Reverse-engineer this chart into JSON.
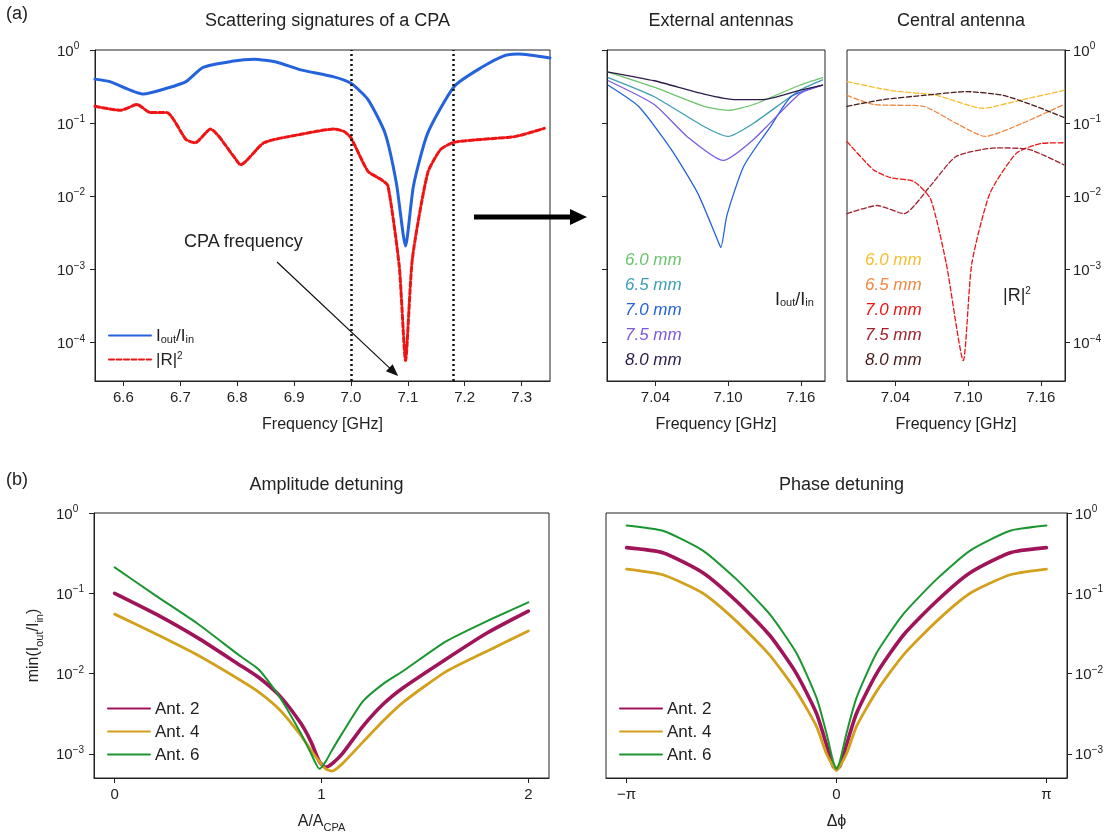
{
  "chart_data": [
    {
      "type": "line",
      "title": "Scattering signatures of a CPA",
      "xlabel": "Frequency [GHz]",
      "xlim": [
        6.55,
        7.35
      ],
      "xticks": [
        6.6,
        6.7,
        6.8,
        6.9,
        {
          "value": 7,
          "label": "7.0"
        },
        7.1,
        7.2,
        7.3
      ],
      "ylim": [
        3e-05,
        1
      ],
      "yticks": [
        {
          "value": 1,
          "label": "10$^{0}$"
        },
        {
          "value": 0.1,
          "label": "10$^{−1}$"
        },
        {
          "value": 0.01,
          "label": "10$^{−2}$"
        },
        {
          "value": 0.001,
          "label": "10$^{−3}$"
        },
        {
          "value": 0.0001,
          "label": "10$^{−4}$"
        }
      ],
      "log": "y",
      "marker": "none",
      "legend": "bottom left",
      "series": [
        {
          "name": "I$_{out}$/I$_{in}$",
          "color": "#2463dc",
          "line_style": "solid",
          "x": [
            6.55,
            6.576,
            6.635,
            6.676,
            6.71,
            6.74,
            6.79,
            6.83,
            6.87,
            6.91,
            6.97,
            7.0,
            7.03,
            7.06,
            7.08,
            7.096,
            7.11,
            7.135,
            7.182,
            7.23,
            7.27,
            7.294,
            7.35
          ],
          "values": [
            0.4,
            0.37,
            0.25,
            0.3,
            0.37,
            0.58,
            0.7,
            0.75,
            0.68,
            0.54,
            0.43,
            0.35,
            0.21,
            0.073,
            0.015,
            0.0021,
            0.014,
            0.073,
            0.32,
            0.58,
            0.84,
            0.88,
            0.78
          ]
        },
        {
          "name": "|R|$^{2}$",
          "color": "#ee1414",
          "line_style": "dashed",
          "x": [
            6.55,
            6.595,
            6.624,
            6.647,
            6.676,
            6.71,
            6.726,
            6.753,
            6.794,
            6.806,
            6.847,
            6.91,
            6.97,
            6.988,
            7.0,
            7.03,
            7.053,
            7.065,
            7.085,
            7.096,
            7.108,
            7.135,
            7.158,
            7.182,
            7.23,
            7.29,
            7.34
          ],
          "values": [
            0.17,
            0.15,
            0.18,
            0.14,
            0.14,
            0.06,
            0.054,
            0.083,
            0.035,
            0.027,
            0.054,
            0.07,
            0.083,
            0.077,
            0.063,
            0.022,
            0.017,
            0.014,
            0.0011,
            5.7e-05,
            0.0014,
            0.021,
            0.044,
            0.055,
            0.06,
            0.066,
            0.085
          ]
        }
      ],
      "ref_lines": [
        {
          "axis": "x",
          "value": 7.0,
          "color": "#111111",
          "line_style": "dotted"
        },
        {
          "axis": "x",
          "value": 7.18,
          "color": "#111111",
          "line_style": "dotted"
        }
      ],
      "annotations": [
        "(a)",
        "CPA frequency"
      ]
    },
    {
      "type": "line",
      "title": "External antennas",
      "xlabel": "Frequency [GHz]",
      "xlim": [
        7.0,
        7.18
      ],
      "xticks": [
        7.04,
        {
          "value": 7.1,
          "label": "7.10"
        },
        7.16
      ],
      "ylim": [
        3e-05,
        1
      ],
      "yticks": [
        1,
        0.1,
        0.01,
        0.001,
        0.0001
      ],
      "log": "y",
      "marker": "none",
      "legend": "bottom left",
      "tick_labels": "x",
      "series": [
        {
          "name": "6.0 mm",
          "color": "#6cc46c",
          "x": [
            7.001,
            7.039,
            7.08,
            7.1,
            7.121,
            7.159,
            7.178
          ],
          "values": [
            0.5,
            0.31,
            0.17,
            0.15,
            0.18,
            0.33,
            0.42
          ]
        },
        {
          "name": "6.5 mm",
          "color": "#3d9eb4",
          "x": [
            7.001,
            7.039,
            7.08,
            7.1,
            7.121,
            7.159,
            7.178
          ],
          "values": [
            0.42,
            0.23,
            0.09,
            0.066,
            0.1,
            0.28,
            0.39
          ]
        },
        {
          "name": "7.0 mm",
          "color": "#2463dc",
          "x": [
            7.001,
            7.026,
            7.053,
            7.075,
            7.091,
            7.094,
            7.099,
            7.113,
            7.135,
            7.152,
            7.178
          ],
          "values": [
            0.33,
            0.17,
            0.044,
            0.011,
            0.0026,
            0.002,
            0.0055,
            0.026,
            0.09,
            0.23,
            0.33
          ]
        },
        {
          "name": "7.5 mm",
          "color": "#7a5ae0",
          "x": [
            7.001,
            7.039,
            7.066,
            7.096,
            7.121,
            7.159,
            7.178
          ],
          "values": [
            0.38,
            0.18,
            0.066,
            0.031,
            0.06,
            0.25,
            0.33
          ]
        },
        {
          "name": "8.0 mm",
          "color": "#2c1c4c",
          "x": [
            7.001,
            7.039,
            7.08,
            7.107,
            7.129,
            7.159,
            7.178
          ],
          "values": [
            0.5,
            0.38,
            0.25,
            0.21,
            0.21,
            0.28,
            0.33
          ]
        }
      ],
      "annotations": [
        "I$_{out}$/I$_{in}$"
      ]
    },
    {
      "type": "line",
      "title": "Central antenna",
      "xlabel": "Frequency [GHz]",
      "xlim": [
        7.0,
        7.18
      ],
      "xticks": [
        7.04,
        {
          "value": 7.1,
          "label": "7.10"
        },
        7.16
      ],
      "y2lim": [
        3e-05,
        1
      ],
      "y2ticks": [
        {
          "value": 1,
          "label": "10$^{0}$"
        },
        {
          "value": 0.1,
          "label": "10$^{−1}$"
        },
        {
          "value": 0.01,
          "label": "10$^{−2}$"
        },
        {
          "value": 0.001,
          "label": "10$^{−3}$"
        },
        {
          "value": 0.0001,
          "label": "10$^{−4}$"
        }
      ],
      "log": "y2",
      "marker": "none",
      "legend": "bottom left",
      "line_style": "dashed",
      "series": [
        {
          "name": "6.0 mm",
          "color": "#f5be30",
          "axis": "y2",
          "x": [
            7.0,
            7.036,
            7.074,
            7.112,
            7.145,
            7.179
          ],
          "values": [
            0.37,
            0.28,
            0.24,
            0.16,
            0.21,
            0.28
          ]
        },
        {
          "name": "6.5 mm",
          "color": "#ef8842",
          "axis": "y2",
          "x": [
            7.0,
            7.022,
            7.063,
            7.09,
            7.114,
            7.145,
            7.179
          ],
          "values": [
            0.24,
            0.18,
            0.17,
            0.1,
            0.066,
            0.1,
            0.18
          ]
        },
        {
          "name": "7.0 mm",
          "color": "#ee1414",
          "axis": "y2",
          "x": [
            7.0,
            7.022,
            7.036,
            7.055,
            7.069,
            7.082,
            7.096,
            7.103,
            7.118,
            7.14,
            7.161,
            7.179
          ],
          "values": [
            0.056,
            0.023,
            0.018,
            0.016,
            0.0092,
            0.0012,
            5.7e-05,
            0.0012,
            0.011,
            0.039,
            0.053,
            0.054
          ]
        },
        {
          "name": "7.5 mm",
          "color": "#a0202e",
          "axis": "y2",
          "x": [
            7.0,
            7.025,
            7.047,
            7.069,
            7.09,
            7.123,
            7.15,
            7.179
          ],
          "values": [
            0.0058,
            0.0075,
            0.0058,
            0.014,
            0.035,
            0.046,
            0.044,
            0.027
          ]
        },
        {
          "name": "8.0 mm",
          "color": "#4a1c1c",
          "axis": "y2",
          "x": [
            7.0,
            7.03,
            7.063,
            7.099,
            7.129,
            7.156,
            7.179
          ],
          "values": [
            0.17,
            0.21,
            0.24,
            0.27,
            0.24,
            0.17,
            0.12
          ]
        }
      ],
      "annotations": [
        "|R|$^{2}$"
      ]
    },
    {
      "type": "line",
      "title": "Amplitude detuning",
      "xlabel": "A/A$_{CPA}$",
      "ylabel": "min(I$_{out}$/I$_{in}$)",
      "xlim": [
        -0.1,
        2.1
      ],
      "xticks": [
        0,
        1,
        2
      ],
      "ylim": [
        0.0005,
        1
      ],
      "yticks": [
        {
          "value": 1,
          "label": "10$^{0}$"
        },
        {
          "value": 0.1,
          "label": "10$^{−1}$"
        },
        {
          "value": 0.01,
          "label": "10$^{−2}$"
        },
        {
          "value": 0.001,
          "label": "10$^{−3}$"
        }
      ],
      "log": "y",
      "marker": "none",
      "legend": "bottom left",
      "x": [
        0,
        0.2,
        0.4,
        0.6,
        0.7,
        0.8,
        0.9,
        0.95,
        0.99,
        1.02,
        1.05,
        1.1,
        1.2,
        1.3,
        1.4,
        1.6,
        1.8,
        2.0
      ],
      "series": [
        {
          "name": "Ant. 2",
          "color": "#a0145a",
          "values": [
            0.1,
            0.055,
            0.028,
            0.013,
            0.0088,
            0.0052,
            0.0024,
            0.0014,
            0.0008,
            0.00068,
            0.00075,
            0.001,
            0.0022,
            0.0042,
            0.0068,
            0.015,
            0.032,
            0.06
          ]
        },
        {
          "name": "Ant. 4",
          "color": "#d2a01c",
          "values": [
            0.055,
            0.031,
            0.017,
            0.0085,
            0.0058,
            0.0035,
            0.0017,
            0.0011,
            0.0008,
            0.00065,
            0.00061,
            0.00075,
            0.0014,
            0.0026,
            0.0045,
            0.0105,
            0.019,
            0.034
          ]
        },
        {
          "name": "Ant. 6",
          "color": "#1a9630",
          "values": [
            0.21,
            0.093,
            0.042,
            0.017,
            0.011,
            0.005,
            0.0018,
            0.001,
            0.00065,
            0.0008,
            0.0011,
            0.0018,
            0.0045,
            0.0075,
            0.011,
            0.025,
            0.045,
            0.077
          ]
        }
      ],
      "annotations": [
        "(b)"
      ]
    },
    {
      "type": "line",
      "title": "Phase detuning",
      "xlabel": "Δϕ",
      "xlim": [
        -3.45,
        3.45
      ],
      "xticks": [
        {
          "value": -3.1416,
          "label": "−π"
        },
        0,
        {
          "value": 3.1416,
          "label": "π"
        }
      ],
      "y2lim": [
        0.0005,
        1
      ],
      "y2ticks": [
        {
          "value": 1,
          "label": "10$^{0}$"
        },
        {
          "value": 0.1,
          "label": "10$^{−1}$"
        },
        {
          "value": 0.01,
          "label": "10$^{−2}$"
        },
        {
          "value": 0.001,
          "label": "10$^{−3}$"
        }
      ],
      "log": "y2",
      "marker": "none",
      "legend": "bottom left",
      "x": [
        -3.1416,
        -2.6,
        -2.0,
        -1.5,
        -1.0,
        -0.6,
        -0.3,
        -0.15,
        -0.05,
        0,
        0.05,
        0.15,
        0.3,
        0.6,
        1.0,
        1.5,
        2.0,
        2.6,
        3.1416
      ],
      "series": [
        {
          "name": "Ant. 2",
          "color": "#a0145a",
          "axis": "y2",
          "values": [
            0.37,
            0.32,
            0.18,
            0.08,
            0.03,
            0.01,
            0.0032,
            0.0013,
            0.0007,
            0.00065,
            0.0007,
            0.0013,
            0.0032,
            0.01,
            0.03,
            0.08,
            0.18,
            0.32,
            0.37
          ]
        },
        {
          "name": "Ant. 4",
          "color": "#d2a01c",
          "axis": "y2",
          "values": [
            0.2,
            0.17,
            0.1,
            0.045,
            0.017,
            0.006,
            0.0022,
            0.001,
            0.0007,
            0.00062,
            0.0007,
            0.001,
            0.0022,
            0.006,
            0.017,
            0.045,
            0.1,
            0.17,
            0.2
          ]
        },
        {
          "name": "Ant. 6",
          "color": "#1a9630",
          "axis": "y2",
          "values": [
            0.7,
            0.6,
            0.34,
            0.15,
            0.055,
            0.018,
            0.005,
            0.0018,
            0.0008,
            0.00065,
            0.0008,
            0.0018,
            0.005,
            0.018,
            0.055,
            0.15,
            0.34,
            0.6,
            0.7
          ]
        }
      ]
    }
  ]
}
